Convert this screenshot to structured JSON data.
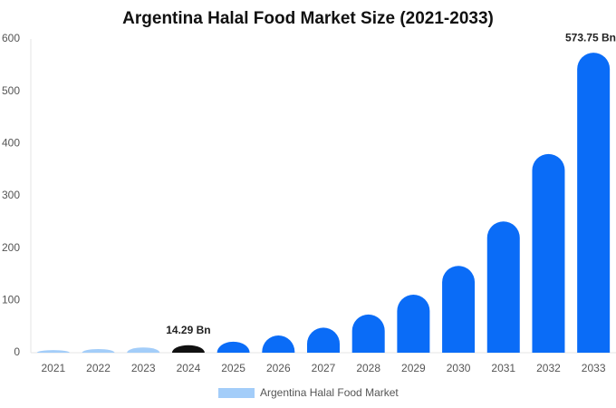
{
  "chart_data": {
    "type": "bar",
    "title": "Argentina Halal Food Market Size (2021-2033)",
    "categories": [
      "2021",
      "2022",
      "2023",
      "2024",
      "2025",
      "2026",
      "2027",
      "2028",
      "2029",
      "2030",
      "2031",
      "2032",
      "2033"
    ],
    "series": [
      {
        "name": "Argentina Halal Food Market",
        "color": "#a3cdf9",
        "values": [
          5,
          7,
          10,
          14.29,
          21,
          33,
          48,
          73,
          111,
          166,
          251,
          380,
          573.75
        ],
        "colors": [
          "#a3cdf9",
          "#a3cdf9",
          "#a3cdf9",
          "#111111",
          "#0a6cf7",
          "#0a6cf7",
          "#0a6cf7",
          "#0a6cf7",
          "#0a6cf7",
          "#0a6cf7",
          "#0a6cf7",
          "#0a6cf7",
          "#0a6cf7"
        ],
        "value_labels": [
          null,
          null,
          null,
          "14.29 Bn",
          null,
          null,
          null,
          null,
          null,
          null,
          null,
          null,
          "573.75 Bn"
        ]
      }
    ],
    "ylim": [
      0,
      600
    ],
    "yticks": [
      0,
      100,
      200,
      300,
      400,
      500,
      600
    ],
    "grid": false
  }
}
